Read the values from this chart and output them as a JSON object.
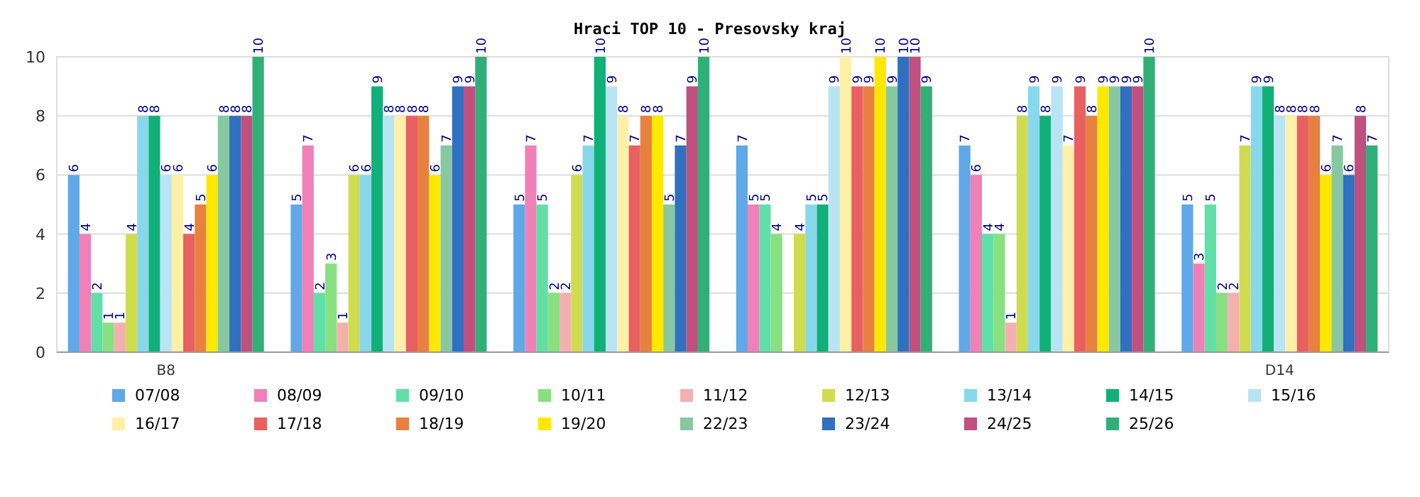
{
  "chart_data": {
    "type": "bar",
    "title": "Hraci TOP 10 - Presovsky kraj",
    "categories": [
      "B8",
      null,
      null,
      null,
      null,
      "D14"
    ],
    "ylim": [
      0,
      10
    ],
    "yticks": [
      0,
      2,
      4,
      6,
      8,
      10
    ],
    "grid": "y",
    "legend": "bottom",
    "data_labels": true,
    "series": [
      {
        "name": "07/08",
        "color": "#60a8e8",
        "values": [
          6,
          5,
          5,
          7,
          7,
          5
        ]
      },
      {
        "name": "08/09",
        "color": "#f080b8",
        "values": [
          4,
          7,
          7,
          5,
          6,
          3
        ]
      },
      {
        "name": "09/10",
        "color": "#60e0a8",
        "values": [
          2,
          2,
          5,
          5,
          4,
          5
        ]
      },
      {
        "name": "10/11",
        "color": "#88e080",
        "values": [
          1,
          3,
          2,
          4,
          4,
          2
        ]
      },
      {
        "name": "11/12",
        "color": "#f4b0b0",
        "values": [
          1,
          1,
          2,
          null,
          1,
          2
        ]
      },
      {
        "name": "12/13",
        "color": "#d0dc50",
        "values": [
          4,
          6,
          6,
          4,
          8,
          7
        ]
      },
      {
        "name": "13/14",
        "color": "#88d8ec",
        "values": [
          8,
          6,
          7,
          5,
          9,
          9
        ]
      },
      {
        "name": "14/15",
        "color": "#10b078",
        "values": [
          8,
          9,
          10,
          5,
          8,
          9
        ]
      },
      {
        "name": "15/16",
        "color": "#b8e4f4",
        "values": [
          6,
          8,
          9,
          9,
          9,
          8
        ]
      },
      {
        "name": "16/17",
        "color": "#fff0a8",
        "values": [
          6,
          8,
          8,
          10,
          7,
          8
        ]
      },
      {
        "name": "17/18",
        "color": "#e86060",
        "values": [
          4,
          8,
          7,
          9,
          9,
          8
        ]
      },
      {
        "name": "18/19",
        "color": "#e88040",
        "values": [
          5,
          8,
          8,
          9,
          8,
          8
        ]
      },
      {
        "name": "19/20",
        "color": "#ffe800",
        "values": [
          6,
          6,
          8,
          10,
          9,
          6
        ]
      },
      {
        "name": "22/23",
        "color": "#88c8a0",
        "values": [
          8,
          7,
          5,
          9,
          9,
          7
        ]
      },
      {
        "name": "23/24",
        "color": "#3070c0",
        "values": [
          8,
          9,
          7,
          10,
          9,
          6
        ]
      },
      {
        "name": "24/25",
        "color": "#c05080",
        "values": [
          8,
          9,
          9,
          10,
          9,
          8
        ]
      },
      {
        "name": "25/26",
        "color": "#30b078",
        "values": [
          10,
          10,
          10,
          9,
          10,
          7
        ]
      }
    ]
  }
}
